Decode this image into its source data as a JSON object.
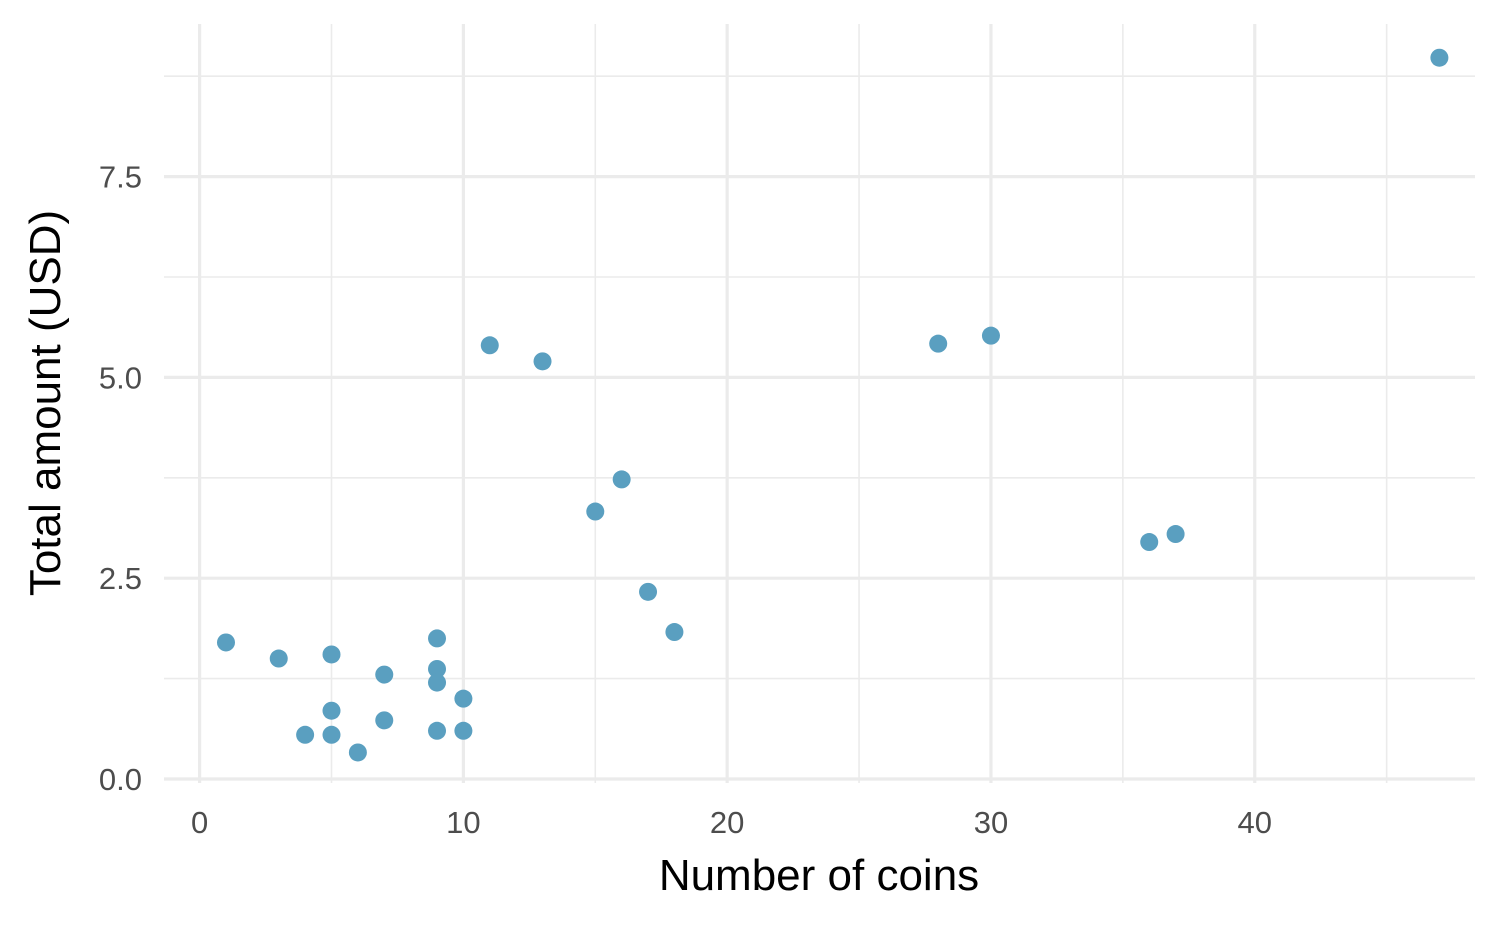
{
  "chart_data": {
    "type": "scatter",
    "title": "",
    "xlabel": "Number of coins",
    "ylabel": "Total amount (USD)",
    "xlim": [
      -1.35,
      48.35
    ],
    "ylim": [
      -0.05,
      9.4
    ],
    "x_ticks": [
      0,
      10,
      20,
      30,
      40
    ],
    "x_tick_labels": [
      "0",
      "10",
      "20",
      "30",
      "40"
    ],
    "x_minor_ticks": [
      5,
      15,
      25,
      35,
      45
    ],
    "y_ticks": [
      0,
      2.5,
      5,
      7.5
    ],
    "y_tick_labels": [
      "0.0",
      "2.5",
      "5.0",
      "7.5"
    ],
    "y_minor_ticks": [
      1.25,
      3.75,
      6.25,
      8.75
    ],
    "grid": true,
    "legend": "none",
    "point_color": "#5a9fc0",
    "points": [
      {
        "x": 1,
        "y": 1.7
      },
      {
        "x": 3,
        "y": 1.5
      },
      {
        "x": 4,
        "y": 0.55
      },
      {
        "x": 5,
        "y": 1.55
      },
      {
        "x": 5,
        "y": 0.85
      },
      {
        "x": 5,
        "y": 0.55
      },
      {
        "x": 6,
        "y": 0.33
      },
      {
        "x": 7,
        "y": 1.3
      },
      {
        "x": 7,
        "y": 0.73
      },
      {
        "x": 9,
        "y": 1.75
      },
      {
        "x": 9,
        "y": 1.37
      },
      {
        "x": 9,
        "y": 1.2
      },
      {
        "x": 9,
        "y": 0.6
      },
      {
        "x": 10,
        "y": 1.0
      },
      {
        "x": 10,
        "y": 0.6
      },
      {
        "x": 11,
        "y": 5.4
      },
      {
        "x": 13,
        "y": 5.2
      },
      {
        "x": 15,
        "y": 3.33
      },
      {
        "x": 16,
        "y": 3.73
      },
      {
        "x": 17,
        "y": 2.33
      },
      {
        "x": 18,
        "y": 1.83
      },
      {
        "x": 28,
        "y": 5.42
      },
      {
        "x": 30,
        "y": 5.52
      },
      {
        "x": 36,
        "y": 2.95
      },
      {
        "x": 37,
        "y": 3.05
      },
      {
        "x": 47,
        "y": 8.98
      }
    ]
  }
}
